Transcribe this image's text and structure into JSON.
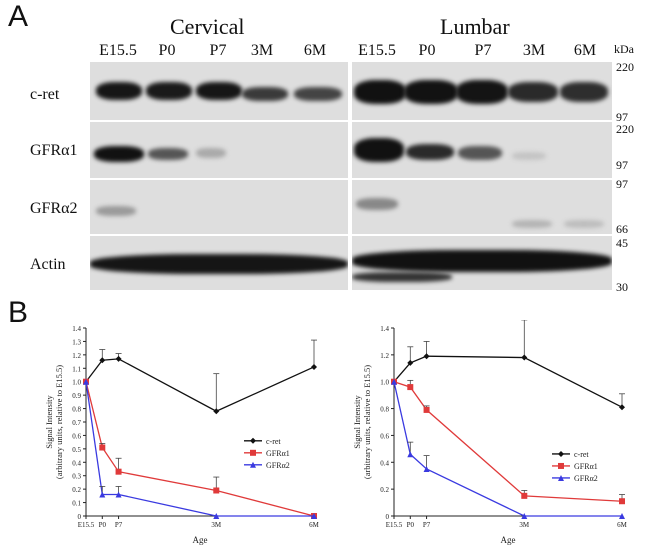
{
  "panel_a": {
    "letter": "A",
    "regions": [
      "Cervical",
      "Lumbar"
    ],
    "lanes": [
      "E15.5",
      "P0",
      "P7",
      "3M",
      "6M"
    ],
    "rows": [
      "c-ret",
      "GFRα1",
      "GFRα2",
      "Actin"
    ],
    "mw_unit": "kDa",
    "mw_labels": [
      "220",
      "97",
      "220",
      "97",
      "97",
      "66",
      "45",
      "30"
    ]
  },
  "panel_b": {
    "letter": "B"
  },
  "chart_data": [
    {
      "type": "line",
      "region": "Cervical",
      "categories": [
        "E15.5",
        "P0",
        "P7",
        "3M",
        "6M"
      ],
      "x": [
        0,
        1,
        2,
        8,
        14
      ],
      "ylabel": "Signal Intensity\n(arbitrary units, relative to E15.5)",
      "xlabel": "Age",
      "ylim": [
        0,
        1.4
      ],
      "yticks": [
        "0",
        "0.1",
        "0.2",
        "0.3",
        "0.4",
        "0.5",
        "0.6",
        "0.7",
        "0.8",
        "0.9",
        "1.0",
        "1.1",
        "1.2",
        "1.3",
        "1.4"
      ],
      "legend_position": "center-right",
      "series": [
        {
          "name": "c-ret",
          "color": "#111111",
          "marker": "diamond",
          "values": [
            1.0,
            1.16,
            1.17,
            0.78,
            1.11
          ],
          "err": [
            0,
            0.08,
            0.04,
            0.28,
            0.2
          ]
        },
        {
          "name": "GFRα1",
          "color": "#e03a3a",
          "marker": "square",
          "values": [
            1.0,
            0.51,
            0.33,
            0.19,
            0.0
          ],
          "err": [
            0,
            0.03,
            0.1,
            0.1,
            0
          ]
        },
        {
          "name": "GFRα2",
          "color": "#3a3ae0",
          "marker": "triangle",
          "values": [
            1.0,
            0.16,
            0.16,
            0.0,
            0.0
          ],
          "err": [
            0,
            0.06,
            0.06,
            0,
            0
          ]
        }
      ]
    },
    {
      "type": "line",
      "region": "Lumbar",
      "categories": [
        "E15.5",
        "P0",
        "P7",
        "3M",
        "6M"
      ],
      "x": [
        0,
        1,
        2,
        8,
        14
      ],
      "ylabel": "Signal Intensity\n(arbitrary units, relative to E15.5)",
      "xlabel": "Age",
      "ylim": [
        0,
        1.4
      ],
      "yticks": [
        "0",
        "0.2",
        "0.4",
        "0.6",
        "0.8",
        "1.0",
        "1.2",
        "1.4"
      ],
      "legend_position": "bottom-right",
      "series": [
        {
          "name": "c-ret",
          "color": "#111111",
          "marker": "diamond",
          "values": [
            1.0,
            1.14,
            1.19,
            1.18,
            0.81
          ],
          "err": [
            0,
            0.12,
            0.11,
            0.28,
            0.1
          ]
        },
        {
          "name": "GFRα1",
          "color": "#e03a3a",
          "marker": "square",
          "values": [
            1.0,
            0.96,
            0.79,
            0.15,
            0.11
          ],
          "err": [
            0,
            0.05,
            0.03,
            0.04,
            0.05
          ]
        },
        {
          "name": "GFRα2",
          "color": "#3a3ae0",
          "marker": "triangle",
          "values": [
            1.0,
            0.46,
            0.35,
            0.0,
            0.0
          ],
          "err": [
            0,
            0.09,
            0.1,
            0,
            0
          ]
        }
      ]
    }
  ]
}
